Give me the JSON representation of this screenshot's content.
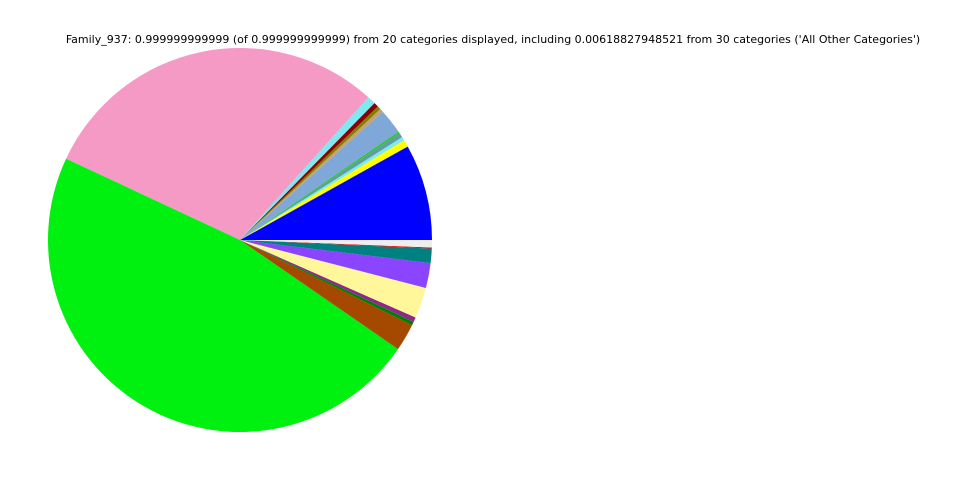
{
  "chart_data": {
    "type": "pie",
    "title": "Family_937: 0.999999999999 (of 0.999999999999) from 20 categories displayed, including 0.00618827948521 from 30 categories ('All Other Categories')",
    "start_angle_deg": 0,
    "direction": "counterclockwise",
    "legend": "none",
    "slices": [
      {
        "value": 0.081,
        "color": "#0000ff"
      },
      {
        "value": 0.006,
        "color": "#ffff00"
      },
      {
        "value": 0.003,
        "color": "#7fe8f0"
      },
      {
        "value": 0.004,
        "color": "#5f9ea0"
      },
      {
        "value": 0.0015,
        "color": "#22cc22"
      },
      {
        "value": 0.021,
        "color": "#7fa8d8"
      },
      {
        "value": 0.003,
        "color": "#c8a070"
      },
      {
        "value": 0.003,
        "color": "#808000"
      },
      {
        "value": 0.004,
        "color": "#8b0000"
      },
      {
        "value": 0.007,
        "color": "#7fe8f0"
      },
      {
        "value": 0.297,
        "color": "#f49ac4"
      },
      {
        "value": 0.4735,
        "color": "#00f00f"
      },
      {
        "value": 0.023,
        "color": "#a54800"
      },
      {
        "value": 0.003,
        "color": "#008000"
      },
      {
        "value": 0.004,
        "color": "#8b2a8b"
      },
      {
        "value": 0.026,
        "color": "#fff799"
      },
      {
        "value": 0.021,
        "color": "#8b44ff"
      },
      {
        "value": 0.012,
        "color": "#008080"
      },
      {
        "value": 0.001,
        "color": "#dd1111"
      },
      {
        "value": 0.00619,
        "color": "#eeeeee"
      }
    ]
  }
}
